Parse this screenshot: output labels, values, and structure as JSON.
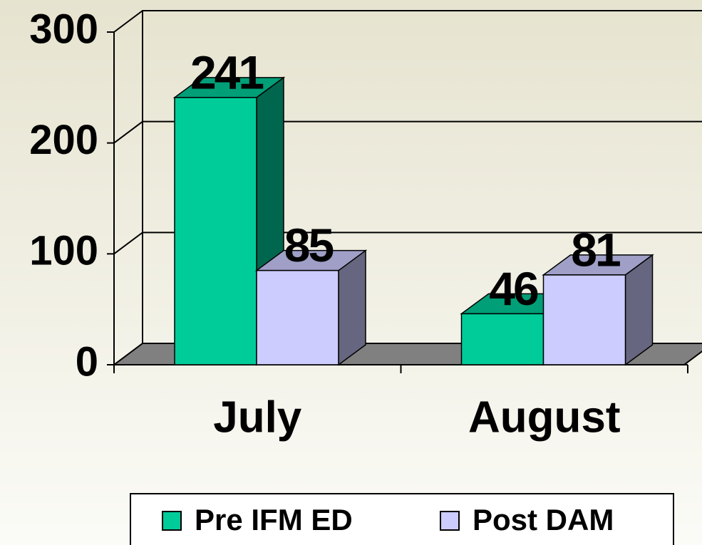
{
  "chart_data": {
    "type": "bar3d",
    "categories": [
      "July",
      "August"
    ],
    "series": [
      {
        "name": "Pre IFM ED",
        "color": "#00cc99",
        "values": [
          241,
          46
        ]
      },
      {
        "name": "Post DAM",
        "color": "#ccccff",
        "values": [
          85,
          81
        ]
      }
    ],
    "ylim": [
      0,
      300
    ],
    "yticks": [
      0,
      100,
      200,
      300
    ],
    "grid": true,
    "legend": "bottom"
  }
}
